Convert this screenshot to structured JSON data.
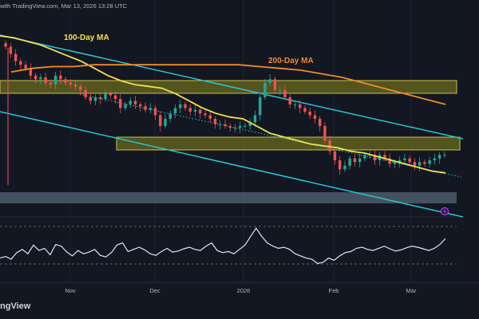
{
  "header": {
    "attribution": "with TradingView.com, Mar 13, 2026 13:28 UTC"
  },
  "footer": {
    "brand": "ngView"
  },
  "colors": {
    "background": "#131722",
    "ma100": "#f2e24a",
    "ma200": "#f28c28",
    "channel": "#26c6da",
    "zone_fill": "#6b6a1e",
    "zone_border": "#c9c24a",
    "support_fill": "#5a6b7a",
    "candle_up": "#26a69a",
    "candle_down": "#ef5350",
    "rsi_line": "#dfe6ff",
    "rsi_levels": "#7b7b7b"
  },
  "chart_data": {
    "type": "candlestick",
    "annotations": [
      {
        "text": "100-Day MA",
        "color": "#f2e24a"
      },
      {
        "text": "200-Day MA",
        "color": "#f28c28"
      }
    ],
    "x_tick_labels": [
      "Nov",
      "Dec",
      "2026",
      "Feb",
      "Mar"
    ],
    "indicators": [
      "100-Day MA",
      "200-Day MA",
      "descending channel",
      "dotted trendline",
      "RSI"
    ],
    "price_values": [
      0.9,
      0.86,
      0.82,
      0.8,
      0.78,
      0.74,
      0.72,
      0.73,
      0.7,
      0.69,
      0.74,
      0.72,
      0.7,
      0.69,
      0.68,
      0.66,
      0.62,
      0.6,
      0.62,
      0.61,
      0.64,
      0.63,
      0.61,
      0.56,
      0.58,
      0.6,
      0.58,
      0.57,
      0.55,
      0.56,
      0.52,
      0.46,
      0.5,
      0.53,
      0.56,
      0.58,
      0.56,
      0.54,
      0.55,
      0.53,
      0.52,
      0.5,
      0.47,
      0.47,
      0.46,
      0.45,
      0.45,
      0.46,
      0.46,
      0.48,
      0.52,
      0.62,
      0.7,
      0.72,
      0.66,
      0.66,
      0.62,
      0.58,
      0.58,
      0.56,
      0.54,
      0.52,
      0.5,
      0.46,
      0.38,
      0.32,
      0.27,
      0.22,
      0.24,
      0.28,
      0.26,
      0.28,
      0.3,
      0.3,
      0.27,
      0.3,
      0.28,
      0.25,
      0.26,
      0.27,
      0.28,
      0.26,
      0.24,
      0.26,
      0.25,
      0.27,
      0.28,
      0.3,
      0.3
    ],
    "ma100_values": [
      0.96,
      0.95,
      0.93,
      0.91,
      0.88,
      0.85,
      0.82,
      0.78,
      0.74,
      0.71,
      0.69,
      0.68,
      0.67,
      0.64,
      0.6,
      0.56,
      0.53,
      0.51,
      0.5,
      0.46,
      0.42,
      0.4,
      0.38,
      0.36,
      0.35,
      0.34,
      0.32,
      0.31,
      0.29,
      0.27,
      0.25,
      0.23,
      0.21,
      0.2
    ],
    "ma200_values": [
      0.76,
      0.78,
      0.79,
      0.79,
      0.8,
      0.8,
      0.8,
      0.8,
      0.8,
      0.8,
      0.8,
      0.8,
      0.79,
      0.78,
      0.77,
      0.75,
      0.73,
      0.7,
      0.67,
      0.64,
      0.61,
      0.58
    ],
    "rsi_values": [
      30,
      33,
      28,
      40,
      46,
      38,
      54,
      44,
      48,
      36,
      55,
      52,
      41,
      34,
      44,
      38,
      41,
      46,
      35,
      32,
      40,
      54,
      58,
      42,
      46,
      50,
      45,
      38,
      35,
      42,
      48,
      41,
      43,
      47,
      50,
      46,
      44,
      52,
      58,
      44,
      40,
      42,
      38,
      46,
      54,
      70,
      85,
      70,
      58,
      52,
      48,
      50,
      46,
      38,
      34,
      30,
      28,
      20,
      22,
      30,
      26,
      34,
      40,
      42,
      48,
      50,
      46,
      44,
      48,
      52,
      47,
      43,
      45,
      49,
      52,
      50,
      47,
      44,
      48,
      55,
      66
    ]
  }
}
